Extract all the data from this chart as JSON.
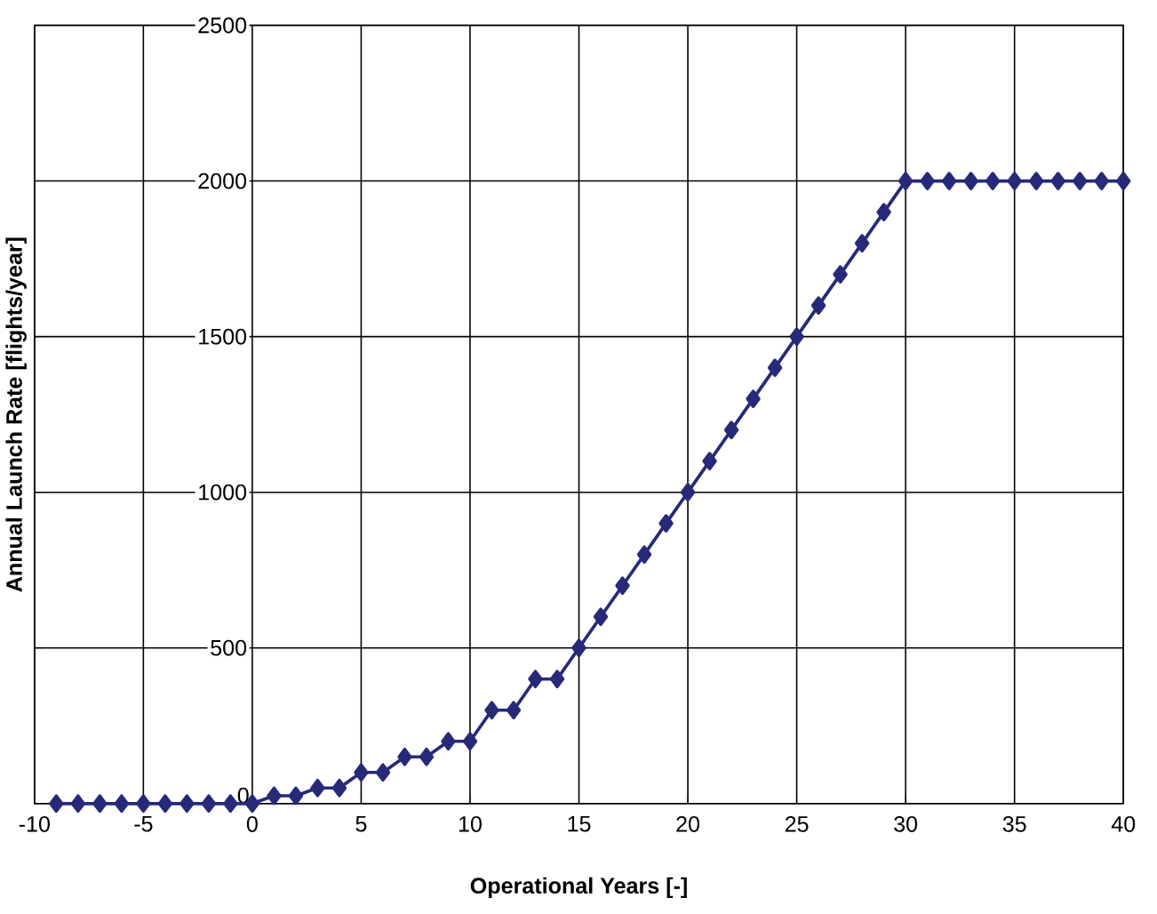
{
  "chart_data": {
    "type": "line",
    "xlabel": "Operational Years [-]",
    "ylabel": "Annual Launch Rate [flights/year]",
    "x": [
      -9,
      -8,
      -7,
      -6,
      -5,
      -4,
      -3,
      -2,
      -1,
      0,
      1,
      2,
      3,
      4,
      5,
      6,
      7,
      8,
      9,
      10,
      11,
      12,
      13,
      14,
      15,
      16,
      17,
      18,
      19,
      20,
      21,
      22,
      23,
      24,
      25,
      26,
      27,
      28,
      29,
      30,
      31,
      32,
      33,
      34,
      35,
      36,
      37,
      38,
      39,
      40
    ],
    "series": [
      {
        "color": "#262a78",
        "values": [
          0,
          0,
          0,
          0,
          0,
          0,
          0,
          0,
          0,
          0,
          25,
          25,
          50,
          50,
          100,
          100,
          150,
          150,
          200,
          200,
          300,
          300,
          400,
          400,
          500,
          600,
          700,
          800,
          900,
          1000,
          1100,
          1200,
          1300,
          1400,
          1500,
          1600,
          1700,
          1800,
          1900,
          2000,
          2000,
          2000,
          2000,
          2000,
          2000,
          2000,
          2000,
          2000,
          2000,
          2000
        ]
      }
    ],
    "xlim": [
      -10,
      40
    ],
    "xticks": [
      -10,
      -5,
      0,
      5,
      10,
      15,
      20,
      25,
      30,
      35,
      40
    ],
    "ylim": [
      0,
      2500
    ],
    "yticks": [
      0,
      500,
      1000,
      1500,
      2000,
      2500
    ],
    "grid": true,
    "marker": "diamond",
    "line_style": "solid"
  }
}
